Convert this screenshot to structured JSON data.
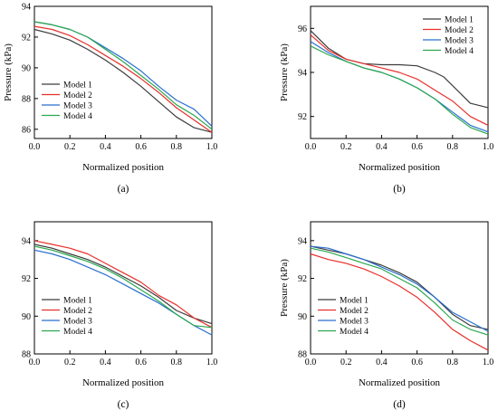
{
  "colors": {
    "model_1": "#3c3c3c",
    "model_2": "#e8302c",
    "model_3": "#2a6fcf",
    "model_4": "#2aa84e"
  },
  "chart_data": [
    {
      "panel": "(a)",
      "caption": "(a)",
      "type": "line",
      "xlabel": "Normalized position",
      "ylabel": "Pressure (kPa)",
      "xlim": [
        0.0,
        1.0
      ],
      "ylim": [
        85.4,
        94.0
      ],
      "xticks": [
        "0.0",
        "0.2",
        "0.4",
        "0.6",
        "0.8",
        "1.0"
      ],
      "yticks": [
        "86",
        "88",
        "90",
        "92",
        "94"
      ],
      "legend_position": "lower-left",
      "series": [
        {
          "name": "Model 1",
          "x": [
            0,
            0.1,
            0.2,
            0.3,
            0.4,
            0.5,
            0.6,
            0.7,
            0.8,
            0.9,
            1.0
          ],
          "y": [
            92.5,
            92.2,
            91.8,
            91.2,
            90.5,
            89.7,
            88.8,
            87.8,
            86.8,
            86.1,
            85.8
          ]
        },
        {
          "name": "Model 2",
          "x": [
            0,
            0.1,
            0.2,
            0.3,
            0.4,
            0.5,
            0.6,
            0.7,
            0.8,
            0.9,
            1.0
          ],
          "y": [
            92.7,
            92.5,
            92.1,
            91.5,
            90.8,
            90.1,
            89.3,
            88.4,
            87.4,
            86.6,
            85.8
          ]
        },
        {
          "name": "Model 3",
          "x": [
            0,
            0.1,
            0.2,
            0.3,
            0.4,
            0.5,
            0.6,
            0.7,
            0.8,
            0.9,
            1.0
          ],
          "y": [
            93.0,
            92.8,
            92.5,
            92.0,
            91.3,
            90.6,
            89.8,
            88.8,
            87.9,
            87.3,
            86.2
          ]
        },
        {
          "name": "Model 4",
          "x": [
            0,
            0.1,
            0.2,
            0.3,
            0.4,
            0.5,
            0.6,
            0.7,
            0.8,
            0.9,
            1.0
          ],
          "y": [
            93.0,
            92.8,
            92.5,
            92.0,
            91.2,
            90.4,
            89.5,
            88.6,
            87.6,
            86.9,
            86.0
          ]
        }
      ]
    },
    {
      "panel": "(b)",
      "caption": "(b)",
      "type": "line",
      "xlabel": "Normalized position",
      "ylabel": "Pressure (kPa)",
      "xlim": [
        0.0,
        1.0
      ],
      "ylim": [
        91.0,
        97.0
      ],
      "xticks": [
        "0.0",
        "0.2",
        "0.4",
        "0.6",
        "0.8",
        "1.0"
      ],
      "yticks": [
        "92",
        "94",
        "96"
      ],
      "legend_position": "upper-right",
      "series": [
        {
          "name": "Model 1",
          "x": [
            0,
            0.1,
            0.2,
            0.3,
            0.4,
            0.5,
            0.6,
            0.7,
            0.75,
            0.85,
            0.9,
            1.0
          ],
          "y": [
            95.9,
            95.1,
            94.6,
            94.4,
            94.35,
            94.35,
            94.3,
            94.0,
            93.8,
            93.0,
            92.6,
            92.4
          ]
        },
        {
          "name": "Model 2",
          "x": [
            0,
            0.1,
            0.2,
            0.3,
            0.4,
            0.5,
            0.6,
            0.7,
            0.8,
            0.9,
            1.0
          ],
          "y": [
            95.7,
            95.0,
            94.6,
            94.4,
            94.2,
            94.0,
            93.7,
            93.2,
            92.7,
            92.0,
            91.6
          ]
        },
        {
          "name": "Model 3",
          "x": [
            0,
            0.1,
            0.2,
            0.3,
            0.4,
            0.5,
            0.6,
            0.7,
            0.8,
            0.9,
            1.0
          ],
          "y": [
            95.4,
            94.9,
            94.5,
            94.2,
            94.0,
            93.7,
            93.3,
            92.8,
            92.2,
            91.6,
            91.3
          ]
        },
        {
          "name": "Model 4",
          "x": [
            0,
            0.1,
            0.2,
            0.3,
            0.4,
            0.5,
            0.6,
            0.7,
            0.8,
            0.9,
            1.0
          ],
          "y": [
            95.2,
            94.8,
            94.5,
            94.2,
            94.0,
            93.7,
            93.3,
            92.8,
            92.1,
            91.5,
            91.2
          ]
        }
      ]
    },
    {
      "panel": "(c)",
      "caption": "(c)",
      "type": "line",
      "xlabel": "Normalized position",
      "ylabel": "",
      "xlim": [
        0.0,
        1.0
      ],
      "ylim": [
        88.0,
        95.0
      ],
      "xticks": [
        "0.0",
        "0.2",
        "0.4",
        "0.6",
        "0.8",
        "1.0"
      ],
      "yticks": [
        "88",
        "90",
        "92",
        "94"
      ],
      "legend_position": "lower-left",
      "series": [
        {
          "name": "Model 1",
          "x": [
            0,
            0.1,
            0.2,
            0.3,
            0.4,
            0.5,
            0.6,
            0.7,
            0.8,
            0.9,
            1.0
          ],
          "y": [
            93.8,
            93.6,
            93.3,
            93.0,
            92.6,
            92.1,
            91.6,
            91.0,
            90.3,
            89.9,
            89.6
          ]
        },
        {
          "name": "Model 2",
          "x": [
            0,
            0.1,
            0.2,
            0.3,
            0.4,
            0.5,
            0.6,
            0.7,
            0.8,
            0.9,
            1.0
          ],
          "y": [
            94.0,
            93.8,
            93.6,
            93.3,
            92.8,
            92.3,
            91.8,
            91.1,
            90.6,
            89.9,
            89.4
          ]
        },
        {
          "name": "Model 3",
          "x": [
            0,
            0.1,
            0.2,
            0.3,
            0.4,
            0.5,
            0.6,
            0.7,
            0.8,
            0.9,
            1.0
          ],
          "y": [
            93.5,
            93.3,
            93.0,
            92.6,
            92.2,
            91.7,
            91.2,
            90.7,
            90.1,
            89.5,
            89.0
          ]
        },
        {
          "name": "Model 4",
          "x": [
            0,
            0.1,
            0.2,
            0.3,
            0.4,
            0.5,
            0.6,
            0.7,
            0.8,
            0.9,
            1.0
          ],
          "y": [
            93.7,
            93.5,
            93.2,
            92.9,
            92.5,
            92.0,
            91.4,
            90.8,
            90.1,
            89.5,
            89.4
          ]
        }
      ]
    },
    {
      "panel": "(d)",
      "caption": "(d)",
      "type": "line",
      "xlabel": "Normalized position",
      "ylabel": "Pressure (kPa)",
      "xlim": [
        0.0,
        1.0
      ],
      "ylim": [
        88.0,
        95.0
      ],
      "xticks": [
        "0.0",
        "0.2",
        "0.4",
        "0.6",
        "0.8",
        "1.0"
      ],
      "yticks": [
        "88",
        "90",
        "92",
        "94"
      ],
      "legend_position": "lower-left",
      "series": [
        {
          "name": "Model 1",
          "x": [
            0,
            0.1,
            0.2,
            0.3,
            0.4,
            0.5,
            0.6,
            0.7,
            0.8,
            0.9,
            1.0
          ],
          "y": [
            93.7,
            93.5,
            93.3,
            93.0,
            92.7,
            92.3,
            91.8,
            91.0,
            90.1,
            89.5,
            89.3
          ]
        },
        {
          "name": "Model 2",
          "x": [
            0,
            0.1,
            0.2,
            0.3,
            0.4,
            0.5,
            0.6,
            0.7,
            0.8,
            0.9,
            1.0
          ],
          "y": [
            93.3,
            93.0,
            92.8,
            92.5,
            92.1,
            91.6,
            91.0,
            90.2,
            89.3,
            88.7,
            88.2
          ]
        },
        {
          "name": "Model 3",
          "x": [
            0,
            0.1,
            0.2,
            0.3,
            0.4,
            0.5,
            0.6,
            0.7,
            0.8,
            0.9,
            1.0
          ],
          "y": [
            93.7,
            93.6,
            93.3,
            93.0,
            92.6,
            92.2,
            91.7,
            91.0,
            90.2,
            89.7,
            89.2
          ]
        },
        {
          "name": "Model 4",
          "x": [
            0,
            0.1,
            0.2,
            0.3,
            0.4,
            0.5,
            0.6,
            0.7,
            0.8,
            0.9,
            1.0
          ],
          "y": [
            93.6,
            93.4,
            93.1,
            92.8,
            92.5,
            92.0,
            91.5,
            90.7,
            89.8,
            89.3,
            89.0
          ]
        }
      ]
    }
  ]
}
